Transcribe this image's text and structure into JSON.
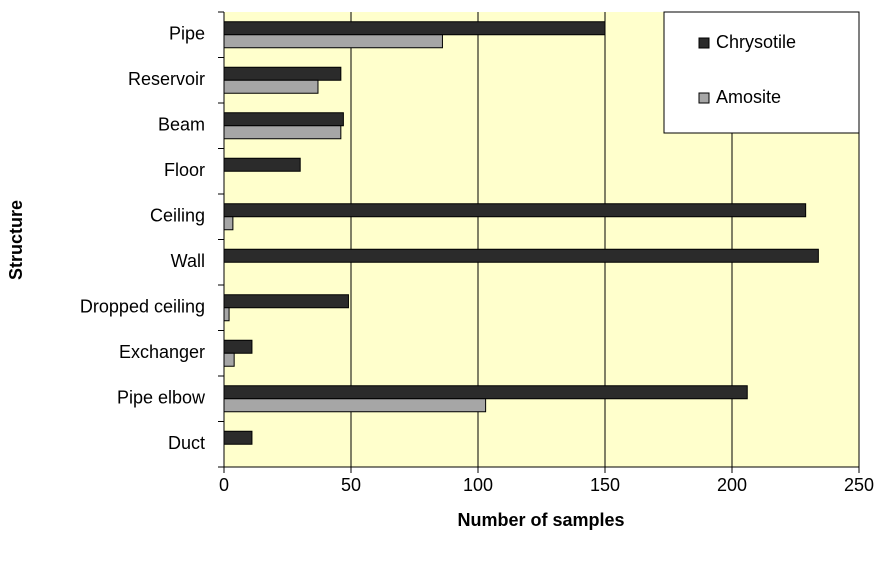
{
  "chart_data": {
    "type": "barh",
    "categories": [
      "Pipe",
      "Reservoir",
      "Beam",
      "Floor",
      "Ceiling",
      "Wall",
      "Dropped ceiling",
      "Exchanger",
      "Pipe elbow",
      "Duct"
    ],
    "series": [
      {
        "name": "Chrysotile",
        "color": "#2b2b2b",
        "values": [
          150,
          46,
          47,
          30,
          229,
          234,
          49,
          11,
          206,
          11
        ]
      },
      {
        "name": "Amosite",
        "color": "#a6a6a6",
        "values": [
          86,
          37,
          46,
          0,
          3.5,
          0,
          2,
          4,
          103,
          0
        ]
      }
    ],
    "xlabel": "Number of samples",
    "ylabel": "Structure",
    "xlim": [
      0,
      250
    ],
    "xticks": [
      0,
      50,
      100,
      150,
      200,
      250
    ],
    "grid": true,
    "legend": "upper right",
    "background": "#ffffcc"
  }
}
